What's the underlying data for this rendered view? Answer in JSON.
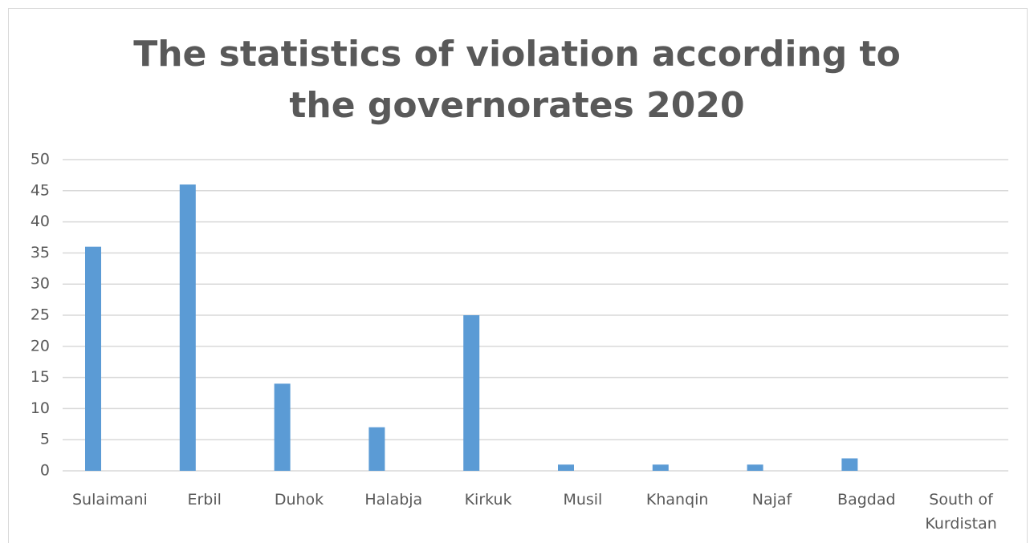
{
  "chart_data": {
    "type": "bar",
    "title": "The statistics of violation according to the governorates 2020",
    "categories": [
      "Sulaimani",
      "Erbil",
      "Duhok",
      "Halabja",
      "Kirkuk",
      "Musil",
      "Khanqin",
      "Najaf",
      "Bagdad",
      "South of Kurdistan"
    ],
    "values": [
      36,
      46,
      14,
      7,
      25,
      1,
      1,
      1,
      2,
      0
    ],
    "color": "#5b9bd5",
    "ylim": [
      0,
      50
    ],
    "yticks": [
      0,
      5,
      10,
      15,
      20,
      25,
      30,
      35,
      40,
      45,
      50
    ],
    "grid": true
  }
}
